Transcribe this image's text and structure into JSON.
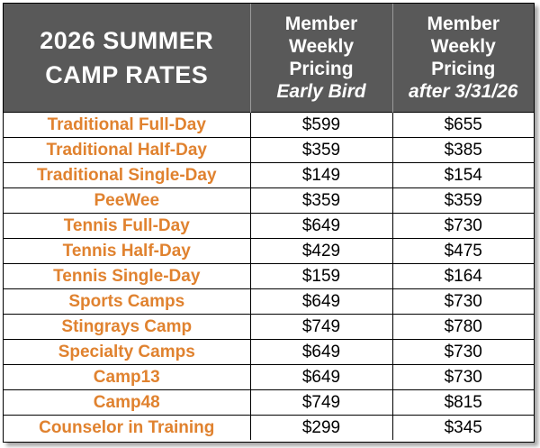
{
  "header": {
    "title_line1": "2026 SUMMER",
    "title_line2": "CAMP RATES",
    "col1": {
      "line1": "Member",
      "line2": "Weekly",
      "line3": "Pricing",
      "line4": "Early Bird"
    },
    "col2": {
      "line1": "Member",
      "line2": "Weekly",
      "line3": "Pricing",
      "line4": "after 3/31/26"
    }
  },
  "rows": [
    {
      "program": "Traditional Full-Day",
      "early": "$599",
      "after": "$655"
    },
    {
      "program": "Traditional Half-Day",
      "early": "$359",
      "after": "$385"
    },
    {
      "program": "Traditional Single-Day",
      "early": "$149",
      "after": "$154"
    },
    {
      "program": "PeeWee",
      "early": "$359",
      "after": "$359"
    },
    {
      "program": "Tennis Full-Day",
      "early": "$649",
      "after": "$730"
    },
    {
      "program": "Tennis Half-Day",
      "early": "$429",
      "after": "$475"
    },
    {
      "program": "Tennis Single-Day",
      "early": "$159",
      "after": "$164"
    },
    {
      "program": "Sports Camps",
      "early": "$649",
      "after": "$730"
    },
    {
      "program": "Stingrays Camp",
      "early": "$749",
      "after": "$780"
    },
    {
      "program": "Specialty Camps",
      "early": "$649",
      "after": "$730"
    },
    {
      "program": "Camp13",
      "early": "$649",
      "after": "$730"
    },
    {
      "program": "Camp48",
      "early": "$749",
      "after": "$815"
    },
    {
      "program": "Counselor in Training",
      "early": "$299",
      "after": "$345"
    }
  ],
  "colors": {
    "header_bg": "#595959",
    "program_text": "#e0822f"
  }
}
